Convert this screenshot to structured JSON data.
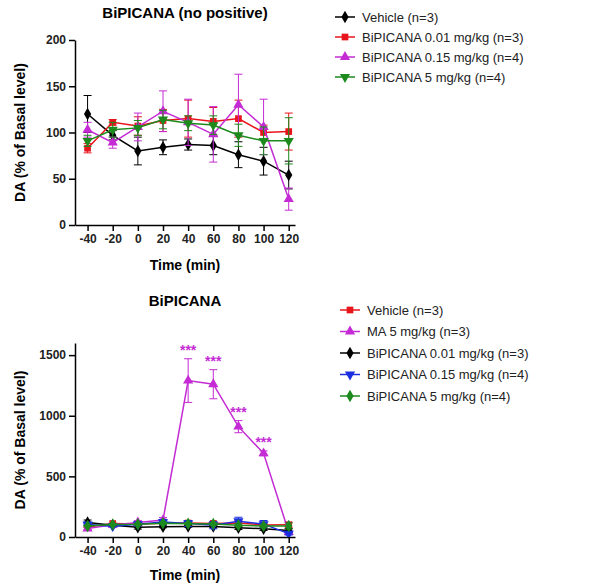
{
  "chart_data": [
    {
      "type": "line",
      "title": "BiPICANA (no positive)",
      "x_label": "Time (min)",
      "y_label": "DA (% of Basal level)",
      "x": [
        -40,
        -20,
        0,
        20,
        40,
        60,
        80,
        100,
        120
      ],
      "xlim": [
        -50,
        125
      ],
      "xticks": [
        -40,
        -20,
        0,
        20,
        40,
        60,
        80,
        100,
        120
      ],
      "ylim": [
        0,
        200
      ],
      "yticks": [
        0,
        50,
        100,
        150,
        200
      ],
      "legend": "right",
      "series": [
        {
          "name": "Vehicle (n=3)",
          "color": "#000000",
          "marker": "diamond",
          "values": [
            120,
            97,
            80,
            84,
            87,
            86,
            76,
            69,
            54
          ],
          "errors": [
            20,
            5,
            15,
            8,
            6,
            10,
            14,
            15,
            15
          ]
        },
        {
          "name": "BiPICANA 0.01 mg/kg (n=3)",
          "color": "#e8141c",
          "marker": "square",
          "values": [
            83,
            111,
            107,
            113,
            115,
            112,
            115,
            100,
            101
          ],
          "errors": [
            5,
            3,
            10,
            12,
            20,
            15,
            20,
            8,
            20
          ]
        },
        {
          "name": "BiPICANA 0.15 mg/kg (n=4)",
          "color": "#c42bd4",
          "marker": "triangle-up",
          "values": [
            103,
            89,
            106,
            123,
            111,
            98,
            130,
            106,
            28
          ],
          "errors": [
            8,
            6,
            15,
            22,
            25,
            30,
            33,
            30,
            12
          ]
        },
        {
          "name": "BiPICANA 5 mg/kg (n=4)",
          "color": "#1c8a1c",
          "marker": "triangle-down",
          "values": [
            91,
            103,
            105,
            114,
            110,
            108,
            97,
            91,
            91
          ],
          "errors": [
            6,
            8,
            8,
            10,
            8,
            10,
            12,
            15,
            25
          ]
        }
      ]
    },
    {
      "type": "line",
      "title": "BiPICANA",
      "x_label": "Time (min)",
      "y_label": "DA (% of Basal level)",
      "x": [
        -40,
        -20,
        0,
        20,
        40,
        60,
        80,
        100,
        120
      ],
      "xlim": [
        -50,
        125
      ],
      "xticks": [
        -40,
        -20,
        0,
        20,
        40,
        60,
        80,
        100,
        120
      ],
      "ylim": [
        0,
        1600
      ],
      "yticks": [
        0,
        500,
        1000,
        1500
      ],
      "legend": "right",
      "series": [
        {
          "name": "Vehicle (n=3)",
          "color": "#e8141c",
          "marker": "square",
          "values": [
            83,
            111,
            107,
            113,
            115,
            112,
            115,
            100,
            101
          ],
          "errors": [
            5,
            3,
            10,
            12,
            20,
            15,
            20,
            8,
            20
          ]
        },
        {
          "name": "MA 5 mg/kg (n=3)",
          "color": "#c42bd4",
          "marker": "triangle-up",
          "values": [
            70,
            100,
            120,
            140,
            1290,
            1260,
            910,
            690,
            40
          ],
          "errors": [
            10,
            10,
            15,
            20,
            180,
            120,
            50,
            20,
            10
          ]
        },
        {
          "name": "BiPICANA 0.01 mg/kg (n=3)",
          "color": "#000000",
          "marker": "diamond",
          "values": [
            120,
            97,
            80,
            84,
            87,
            86,
            76,
            69,
            54
          ],
          "errors": [
            20,
            5,
            15,
            8,
            6,
            10,
            14,
            15,
            15
          ]
        },
        {
          "name": "BiPICANA 0.15 mg/kg (n=4)",
          "color": "#1a2ee0",
          "marker": "triangle-down",
          "values": [
            103,
            89,
            106,
            123,
            111,
            98,
            130,
            106,
            28
          ],
          "errors": [
            8,
            6,
            15,
            22,
            25,
            30,
            33,
            30,
            12
          ]
        },
        {
          "name": "BiPICANA 5 mg/kg (n=4)",
          "color": "#1c8a1c",
          "marker": "diamond",
          "values": [
            91,
            103,
            105,
            114,
            110,
            108,
            97,
            91,
            91
          ],
          "errors": [
            6,
            8,
            8,
            10,
            8,
            10,
            12,
            15,
            25
          ]
        }
      ],
      "annotations": [
        {
          "text": "***",
          "x": 40,
          "color": "#c42bd4"
        },
        {
          "text": "***",
          "x": 60,
          "color": "#c42bd4"
        },
        {
          "text": "***",
          "x": 80,
          "color": "#c42bd4"
        },
        {
          "text": "***",
          "x": 100,
          "color": "#c42bd4"
        }
      ]
    }
  ]
}
